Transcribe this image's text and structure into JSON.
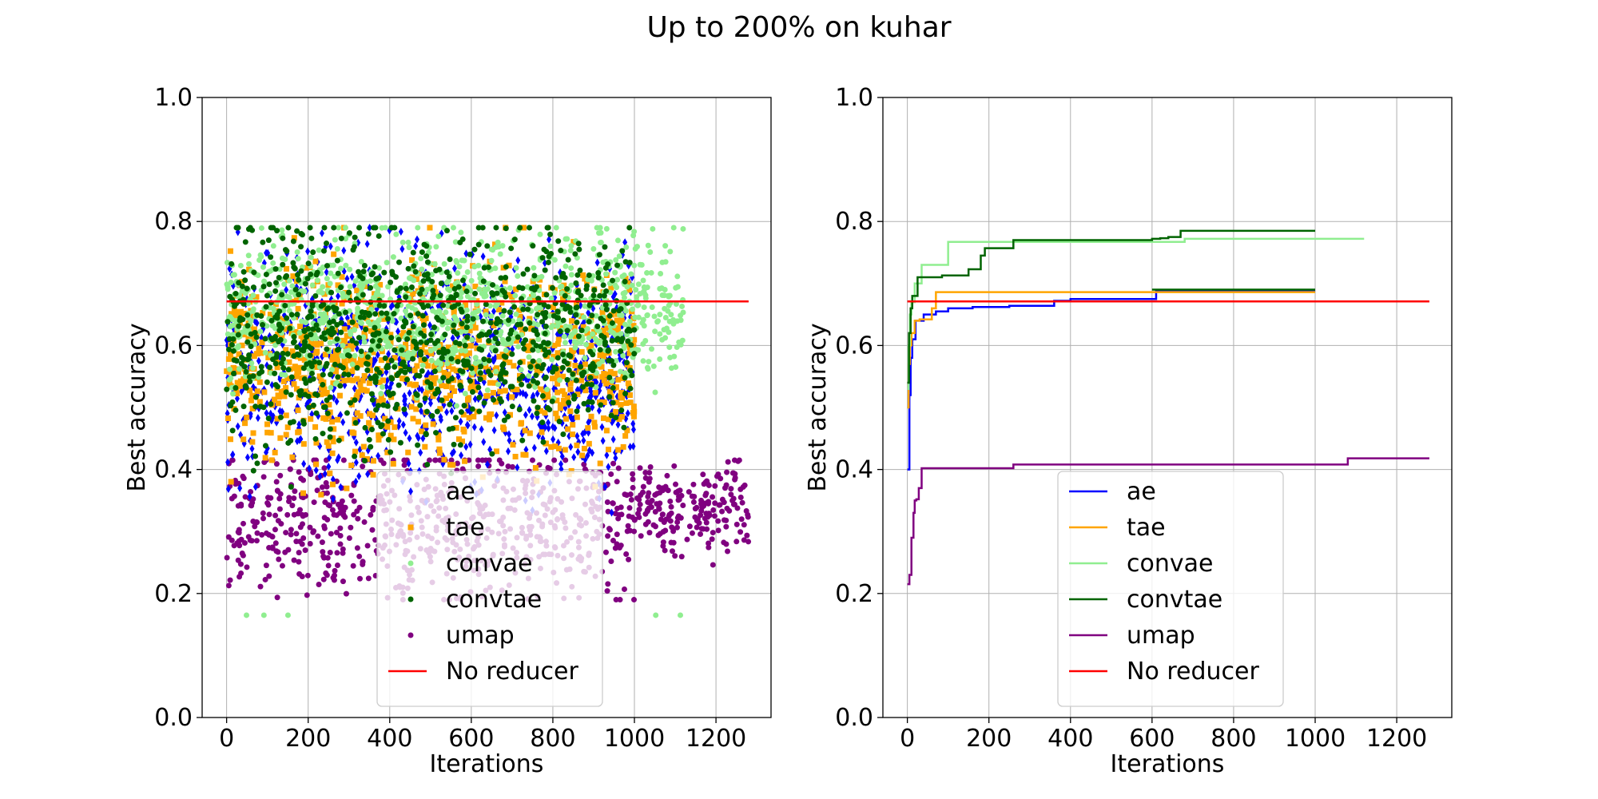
{
  "title": "Up to 200% on kuhar",
  "chart_data": [
    {
      "type": "scatter",
      "xlabel": "Iterations",
      "ylabel": "Best accuracy",
      "xlim": [
        -60,
        1335
      ],
      "ylim": [
        0.0,
        1.0
      ],
      "x_ticks": [
        0,
        200,
        400,
        600,
        800,
        1000,
        1200
      ],
      "y_ticks": [
        0.0,
        0.2,
        0.4,
        0.6,
        0.8,
        1.0
      ],
      "x_tick_labels": [
        "0",
        "200",
        "400",
        "600",
        "800",
        "1000",
        "1200"
      ],
      "y_tick_labels": [
        "0.0",
        "0.2",
        "0.4",
        "0.6",
        "0.8",
        "1.0"
      ],
      "grid": true,
      "legend_position": "lower-center",
      "series": [
        {
          "name": "ae",
          "color": "#0000ff",
          "marker": "diamond",
          "x_range": [
            0,
            1000
          ],
          "y_center": 0.56,
          "y_spread": 0.09
        },
        {
          "name": "tae",
          "color": "#ffa500",
          "marker": "square",
          "x_range": [
            0,
            1000
          ],
          "y_center": 0.57,
          "y_spread": 0.08
        },
        {
          "name": "convae",
          "color": "#90ee90",
          "marker": "circle",
          "x_range": [
            0,
            1120
          ],
          "y_center": 0.66,
          "y_spread": 0.06
        },
        {
          "name": "convtae",
          "color": "#006400",
          "marker": "circle",
          "x_range": [
            0,
            1000
          ],
          "y_center": 0.62,
          "y_spread": 0.09
        },
        {
          "name": "umap",
          "color": "#800080",
          "marker": "circle",
          "x_range": [
            0,
            1280
          ],
          "y_center": 0.32,
          "y_spread": 0.06
        },
        {
          "name": "No reducer",
          "color": "#ff0000",
          "marker": "line",
          "line_y": 0.671,
          "x_range": [
            0,
            1280
          ]
        }
      ]
    },
    {
      "type": "line",
      "xlabel": "Iterations",
      "ylabel": "Best accuracy",
      "xlim": [
        -60,
        1335
      ],
      "ylim": [
        0.0,
        1.0
      ],
      "x_ticks": [
        0,
        200,
        400,
        600,
        800,
        1000,
        1200
      ],
      "y_ticks": [
        0.0,
        0.2,
        0.4,
        0.6,
        0.8,
        1.0
      ],
      "x_tick_labels": [
        "0",
        "200",
        "400",
        "600",
        "800",
        "1000",
        "1200"
      ],
      "y_tick_labels": [
        "0.0",
        "0.2",
        "0.4",
        "0.6",
        "0.8",
        "1.0"
      ],
      "grid": true,
      "legend_position": "lower-center",
      "series": [
        {
          "name": "ae",
          "color": "#0000ff",
          "step": true,
          "x": [
            0,
            5,
            8,
            12,
            20,
            40,
            70,
            100,
            160,
            250,
            360,
            400,
            610,
            1000
          ],
          "y": [
            0.4,
            0.52,
            0.58,
            0.61,
            0.64,
            0.65,
            0.655,
            0.66,
            0.662,
            0.664,
            0.672,
            0.675,
            0.688,
            0.688
          ]
        },
        {
          "name": "tae",
          "color": "#ffa500",
          "step": true,
          "x": [
            0,
            3,
            6,
            10,
            18,
            30,
            60,
            70,
            1000
          ],
          "y": [
            0.5,
            0.57,
            0.6,
            0.62,
            0.64,
            0.642,
            0.66,
            0.686,
            0.686
          ]
        },
        {
          "name": "convae",
          "color": "#90ee90",
          "step": true,
          "x": [
            0,
            3,
            6,
            10,
            18,
            35,
            100,
            160,
            680,
            1120
          ],
          "y": [
            0.53,
            0.6,
            0.65,
            0.67,
            0.7,
            0.73,
            0.767,
            0.767,
            0.772,
            0.772
          ]
        },
        {
          "name": "convtae",
          "color": "#006400",
          "step": true,
          "x": [
            0,
            4,
            8,
            12,
            25,
            85,
            150,
            180,
            190,
            260,
            580,
            600,
            620,
            640,
            670,
            1000
          ],
          "y": [
            0.54,
            0.62,
            0.66,
            0.68,
            0.71,
            0.713,
            0.723,
            0.745,
            0.757,
            0.77,
            0.77,
            0.772,
            0.773,
            0.775,
            0.785,
            0.785
          ]
        },
        {
          "name": "convtae",
          "color": "#006400",
          "step": true,
          "x": [
            600,
            1000
          ],
          "y": [
            0.69,
            0.69
          ]
        },
        {
          "name": "umap",
          "color": "#800080",
          "step": true,
          "x": [
            0,
            5,
            10,
            15,
            18,
            22,
            28,
            35,
            260,
            1080,
            1280
          ],
          "y": [
            0.215,
            0.23,
            0.29,
            0.33,
            0.35,
            0.352,
            0.37,
            0.402,
            0.408,
            0.418,
            0.418
          ]
        },
        {
          "name": "No reducer",
          "color": "#ff0000",
          "step": false,
          "x": [
            0,
            1280
          ],
          "y": [
            0.671,
            0.671
          ]
        }
      ]
    }
  ]
}
